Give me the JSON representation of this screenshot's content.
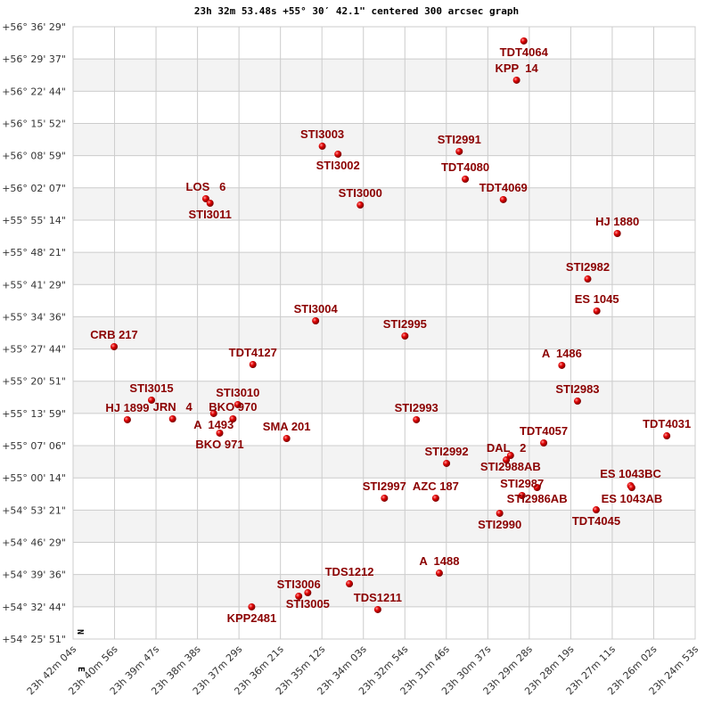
{
  "chart_data": {
    "type": "scatter",
    "title": "23h 32m 53.48s +55° 30′ 42.1\" centered 300 arcsec graph",
    "xlabel": "",
    "ylabel": "",
    "xlim": [
      "23h 42m 04s",
      "23h 24m 53s"
    ],
    "ylim": [
      "+54° 25' 51\"",
      "+56° 36' 29\""
    ],
    "grid": true,
    "compass": {
      "north": "N",
      "east": "E"
    },
    "x_ticks": [
      "23h 42m 04s",
      "23h 40m 56s",
      "23h 39m 47s",
      "23h 38m 38s",
      "23h 37m 29s",
      "23h 36m 21s",
      "23h 35m 12s",
      "23h 34m 03s",
      "23h 32m 54s",
      "23h 31m 46s",
      "23h 30m 37s",
      "23h 29m 28s",
      "23h 28m 19s",
      "23h 27m 11s",
      "23h 26m 02s",
      "23h 24m 53s"
    ],
    "y_ticks": [
      "+56° 36' 29\"",
      "+56° 29' 37\"",
      "+56° 22' 44\"",
      "+56° 15' 52\"",
      "+56° 08' 59\"",
      "+56° 02' 07\"",
      "+55° 55' 14\"",
      "+55° 48' 21\"",
      "+55° 41' 29\"",
      "+55° 34' 36\"",
      "+55° 27' 44\"",
      "+55° 20' 51\"",
      "+55° 13' 59\"",
      "+55° 07' 06\"",
      "+55° 00' 14\"",
      "+54° 53' 21\"",
      "+54° 46' 29\"",
      "+54° 39' 36\"",
      "+54° 32' 44\"",
      "+54° 25' 51\""
    ],
    "colors": {
      "point": "#e00000",
      "label": "#8b0000",
      "stripe": "#f3f3f3",
      "grid": "#cccccc"
    },
    "points": [
      {
        "name": "TDT4064",
        "ra": "23h 29m 37s",
        "dec": "+56° 33' 27\""
      },
      {
        "name": "KPP  14",
        "ra": "23h 29m 49s",
        "dec": "+56° 25' 05\""
      },
      {
        "name": "STI3003",
        "ra": "23h 35m 11s",
        "dec": "+56° 11' 00\""
      },
      {
        "name": "STI3002",
        "ra": "23h 34m 45s",
        "dec": "+56° 09' 18\""
      },
      {
        "name": "STI2991",
        "ra": "23h 31m 24s",
        "dec": "+56° 09' 52\""
      },
      {
        "name": "TDT4080",
        "ra": "23h 31m 14s",
        "dec": "+56° 03' 58\""
      },
      {
        "name": "TDT4069",
        "ra": "23h 30m 11s",
        "dec": "+55° 59' 36\""
      },
      {
        "name": "LOS   6",
        "ra": "23h 38m 24s",
        "dec": "+55° 59' 47\""
      },
      {
        "name": "STI3011",
        "ra": "23h 38m 17s",
        "dec": "+55° 58' 50\""
      },
      {
        "name": "STI3000",
        "ra": "23h 34m 08s",
        "dec": "+55° 58' 27\""
      },
      {
        "name": "HJ 1880",
        "ra": "23h 27m 02s",
        "dec": "+55° 52' 22\""
      },
      {
        "name": "STI2982",
        "ra": "23h 27m 51s",
        "dec": "+55° 42' 40\""
      },
      {
        "name": "ES 1045",
        "ra": "23h 27m 36s",
        "dec": "+55° 35' 50\""
      },
      {
        "name": "STI3004",
        "ra": "23h 35m 22s",
        "dec": "+55° 33' 44\""
      },
      {
        "name": "STI2995",
        "ra": "23h 32m 54s",
        "dec": "+55° 30' 30\""
      },
      {
        "name": "CRB 217",
        "ra": "23h 40m 56s",
        "dec": "+55° 28' 13\""
      },
      {
        "name": "A  1486",
        "ra": "23h 28m 34s",
        "dec": "+55° 24' 14\""
      },
      {
        "name": "TDT4127",
        "ra": "23h 37m 06s",
        "dec": "+55° 24' 25\""
      },
      {
        "name": "STI2983",
        "ra": "23h 28m 08s",
        "dec": "+55° 16' 37\""
      },
      {
        "name": "STI3015",
        "ra": "23h 39m 54s",
        "dec": "+55° 16' 49\""
      },
      {
        "name": "HJ 1899",
        "ra": "23h 40m 34s",
        "dec": "+55° 12' 38\""
      },
      {
        "name": "JRN   4",
        "ra": "23h 39m 19s",
        "dec": "+55° 12' 49\""
      },
      {
        "name": "A  1493",
        "ra": "23h 38m 11s",
        "dec": "+55° 13' 58\""
      },
      {
        "name": "STI3010",
        "ra": "23h 37m 31s",
        "dec": "+55° 15' 52\""
      },
      {
        "name": "BKO 970",
        "ra": "23h 37m 39s",
        "dec": "+55° 12' 49\""
      },
      {
        "name": "BKO 971",
        "ra": "23h 38m 01s",
        "dec": "+55° 09' 47\""
      },
      {
        "name": "SMA 201",
        "ra": "23h 36m 10s",
        "dec": "+55° 08' 38\""
      },
      {
        "name": "STI2993",
        "ra": "23h 32m 35s",
        "dec": "+55° 12' 38\""
      },
      {
        "name": "TDT4057",
        "ra": "23h 29m 04s",
        "dec": "+55° 07' 41\""
      },
      {
        "name": "TDT4031",
        "ra": "23h 25m 40s",
        "dec": "+55° 09' 12\""
      },
      {
        "name": "STI2988AB",
        "ra": "23h 29m 59s",
        "dec": "+55° 05' 01\""
      },
      {
        "name": "DAL   2",
        "ra": "23h 30m 06s",
        "dec": "+55° 04' 04\""
      },
      {
        "name": "STI2992",
        "ra": "23h 31m 45s",
        "dec": "+55° 03' 19\""
      },
      {
        "name": "STI2986AB",
        "ra": "23h 29m 15s",
        "dec": "+54° 58' 10\""
      },
      {
        "name": "STI2987",
        "ra": "23h 29m 40s",
        "dec": "+54° 56' 28\""
      },
      {
        "name": "ES 1043BC",
        "ra": "23h 26m 40s",
        "dec": "+54° 58' 33\""
      },
      {
        "name": "ES 1043AB",
        "ra": "23h 26m 38s",
        "dec": "+54° 58' 10\""
      },
      {
        "name": "TDT4045",
        "ra": "23h 27m 37s",
        "dec": "+54° 53' 25\""
      },
      {
        "name": "STI2997",
        "ra": "23h 33m 28s",
        "dec": "+54° 55' 54\""
      },
      {
        "name": "AZC 187",
        "ra": "23h 32m 03s",
        "dec": "+54° 55' 54\""
      },
      {
        "name": "STI2990",
        "ra": "23h 30m 17s",
        "dec": "+54° 52' 40\""
      },
      {
        "name": "A  1488",
        "ra": "23h 31m 57s",
        "dec": "+54° 39' 55\""
      },
      {
        "name": "TDS1212",
        "ra": "23h 34m 26s",
        "dec": "+54° 37' 38\""
      },
      {
        "name": "STI3005",
        "ra": "23h 35m 35s",
        "dec": "+54° 35' 44\""
      },
      {
        "name": "STI3006",
        "ra": "23h 35m 50s",
        "dec": "+54° 34' 59\""
      },
      {
        "name": "KPP2481",
        "ra": "23h 37m 08s",
        "dec": "+54° 32' 42\""
      },
      {
        "name": "TDS1211",
        "ra": "23h 33m 39s",
        "dec": "+54° 32' 08\""
      }
    ]
  }
}
